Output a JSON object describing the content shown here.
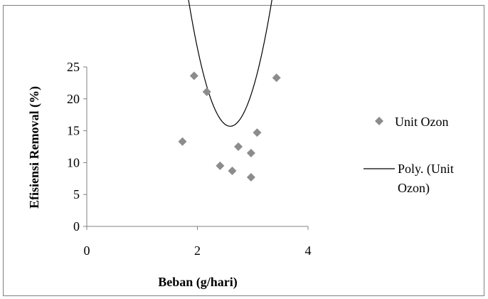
{
  "chart_data": {
    "type": "scatter",
    "xlabel": "Beban (g/hari)",
    "ylabel": "Efisiensi Removal (%)",
    "xlim": [
      0,
      4
    ],
    "ylim": [
      0,
      25
    ],
    "x_ticks": [
      "0",
      "2",
      "4"
    ],
    "y_ticks": [
      "0",
      "5",
      "10",
      "15",
      "20",
      "25"
    ],
    "grid": false,
    "legend_position": "right",
    "series": [
      {
        "name": "Unit Ozon",
        "marker": "diamond",
        "color": "#8c8c8c",
        "points": [
          {
            "x": 1.73,
            "y": 13.3
          },
          {
            "x": 1.94,
            "y": 23.6
          },
          {
            "x": 2.17,
            "y": 21.1
          },
          {
            "x": 2.41,
            "y": 9.5
          },
          {
            "x": 2.63,
            "y": 8.7
          },
          {
            "x": 2.74,
            "y": 12.5
          },
          {
            "x": 2.97,
            "y": 11.5
          },
          {
            "x": 2.97,
            "y": 7.7
          },
          {
            "x": 3.08,
            "y": 14.7
          },
          {
            "x": 3.43,
            "y": 23.3
          }
        ]
      },
      {
        "name": "Poly. (Unit Ozon)",
        "legend_lines": [
          "Poly. (Unit",
          "Ozon)"
        ],
        "type": "line",
        "color": "#000000",
        "x_range": [
          1.73,
          3.43
        ],
        "polynomial": [
          250.0,
          -180.7,
          34.84
        ]
      }
    ]
  }
}
